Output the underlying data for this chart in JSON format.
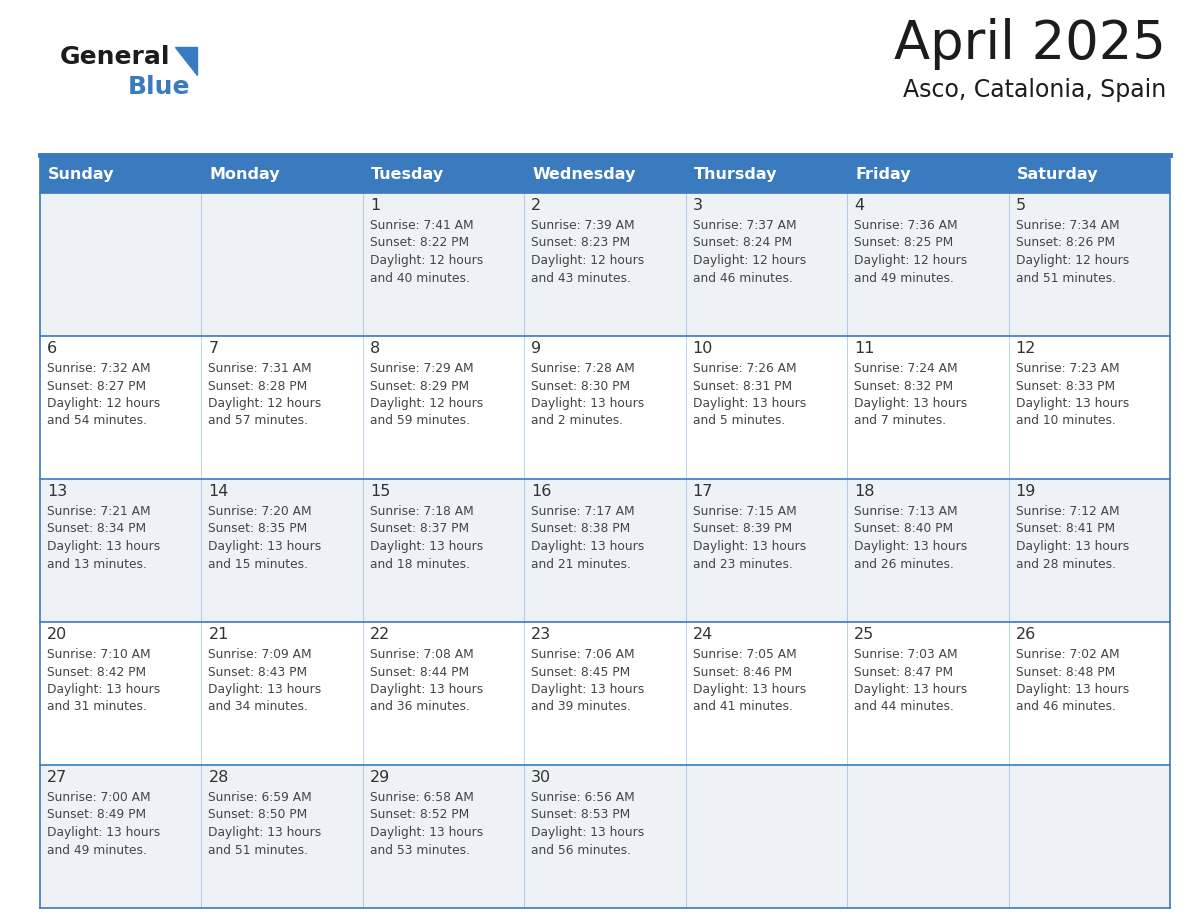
{
  "title": "April 2025",
  "subtitle": "Asco, Catalonia, Spain",
  "header_color": "#3a7abf",
  "header_text_color": "#ffffff",
  "cell_bg_color1": "#eef2f7",
  "cell_bg_color2": "#ffffff",
  "day_number_color": "#333333",
  "text_color": "#444444",
  "line_color": "#3a7abf",
  "days_of_week": [
    "Sunday",
    "Monday",
    "Tuesday",
    "Wednesday",
    "Thursday",
    "Friday",
    "Saturday"
  ],
  "weeks": [
    [
      {
        "day": "",
        "sunrise": "",
        "sunset": "",
        "daylight": ""
      },
      {
        "day": "",
        "sunrise": "",
        "sunset": "",
        "daylight": ""
      },
      {
        "day": "1",
        "sunrise": "Sunrise: 7:41 AM",
        "sunset": "Sunset: 8:22 PM",
        "daylight": "Daylight: 12 hours\nand 40 minutes."
      },
      {
        "day": "2",
        "sunrise": "Sunrise: 7:39 AM",
        "sunset": "Sunset: 8:23 PM",
        "daylight": "Daylight: 12 hours\nand 43 minutes."
      },
      {
        "day": "3",
        "sunrise": "Sunrise: 7:37 AM",
        "sunset": "Sunset: 8:24 PM",
        "daylight": "Daylight: 12 hours\nand 46 minutes."
      },
      {
        "day": "4",
        "sunrise": "Sunrise: 7:36 AM",
        "sunset": "Sunset: 8:25 PM",
        "daylight": "Daylight: 12 hours\nand 49 minutes."
      },
      {
        "day": "5",
        "sunrise": "Sunrise: 7:34 AM",
        "sunset": "Sunset: 8:26 PM",
        "daylight": "Daylight: 12 hours\nand 51 minutes."
      }
    ],
    [
      {
        "day": "6",
        "sunrise": "Sunrise: 7:32 AM",
        "sunset": "Sunset: 8:27 PM",
        "daylight": "Daylight: 12 hours\nand 54 minutes."
      },
      {
        "day": "7",
        "sunrise": "Sunrise: 7:31 AM",
        "sunset": "Sunset: 8:28 PM",
        "daylight": "Daylight: 12 hours\nand 57 minutes."
      },
      {
        "day": "8",
        "sunrise": "Sunrise: 7:29 AM",
        "sunset": "Sunset: 8:29 PM",
        "daylight": "Daylight: 12 hours\nand 59 minutes."
      },
      {
        "day": "9",
        "sunrise": "Sunrise: 7:28 AM",
        "sunset": "Sunset: 8:30 PM",
        "daylight": "Daylight: 13 hours\nand 2 minutes."
      },
      {
        "day": "10",
        "sunrise": "Sunrise: 7:26 AM",
        "sunset": "Sunset: 8:31 PM",
        "daylight": "Daylight: 13 hours\nand 5 minutes."
      },
      {
        "day": "11",
        "sunrise": "Sunrise: 7:24 AM",
        "sunset": "Sunset: 8:32 PM",
        "daylight": "Daylight: 13 hours\nand 7 minutes."
      },
      {
        "day": "12",
        "sunrise": "Sunrise: 7:23 AM",
        "sunset": "Sunset: 8:33 PM",
        "daylight": "Daylight: 13 hours\nand 10 minutes."
      }
    ],
    [
      {
        "day": "13",
        "sunrise": "Sunrise: 7:21 AM",
        "sunset": "Sunset: 8:34 PM",
        "daylight": "Daylight: 13 hours\nand 13 minutes."
      },
      {
        "day": "14",
        "sunrise": "Sunrise: 7:20 AM",
        "sunset": "Sunset: 8:35 PM",
        "daylight": "Daylight: 13 hours\nand 15 minutes."
      },
      {
        "day": "15",
        "sunrise": "Sunrise: 7:18 AM",
        "sunset": "Sunset: 8:37 PM",
        "daylight": "Daylight: 13 hours\nand 18 minutes."
      },
      {
        "day": "16",
        "sunrise": "Sunrise: 7:17 AM",
        "sunset": "Sunset: 8:38 PM",
        "daylight": "Daylight: 13 hours\nand 21 minutes."
      },
      {
        "day": "17",
        "sunrise": "Sunrise: 7:15 AM",
        "sunset": "Sunset: 8:39 PM",
        "daylight": "Daylight: 13 hours\nand 23 minutes."
      },
      {
        "day": "18",
        "sunrise": "Sunrise: 7:13 AM",
        "sunset": "Sunset: 8:40 PM",
        "daylight": "Daylight: 13 hours\nand 26 minutes."
      },
      {
        "day": "19",
        "sunrise": "Sunrise: 7:12 AM",
        "sunset": "Sunset: 8:41 PM",
        "daylight": "Daylight: 13 hours\nand 28 minutes."
      }
    ],
    [
      {
        "day": "20",
        "sunrise": "Sunrise: 7:10 AM",
        "sunset": "Sunset: 8:42 PM",
        "daylight": "Daylight: 13 hours\nand 31 minutes."
      },
      {
        "day": "21",
        "sunrise": "Sunrise: 7:09 AM",
        "sunset": "Sunset: 8:43 PM",
        "daylight": "Daylight: 13 hours\nand 34 minutes."
      },
      {
        "day": "22",
        "sunrise": "Sunrise: 7:08 AM",
        "sunset": "Sunset: 8:44 PM",
        "daylight": "Daylight: 13 hours\nand 36 minutes."
      },
      {
        "day": "23",
        "sunrise": "Sunrise: 7:06 AM",
        "sunset": "Sunset: 8:45 PM",
        "daylight": "Daylight: 13 hours\nand 39 minutes."
      },
      {
        "day": "24",
        "sunrise": "Sunrise: 7:05 AM",
        "sunset": "Sunset: 8:46 PM",
        "daylight": "Daylight: 13 hours\nand 41 minutes."
      },
      {
        "day": "25",
        "sunrise": "Sunrise: 7:03 AM",
        "sunset": "Sunset: 8:47 PM",
        "daylight": "Daylight: 13 hours\nand 44 minutes."
      },
      {
        "day": "26",
        "sunrise": "Sunrise: 7:02 AM",
        "sunset": "Sunset: 8:48 PM",
        "daylight": "Daylight: 13 hours\nand 46 minutes."
      }
    ],
    [
      {
        "day": "27",
        "sunrise": "Sunrise: 7:00 AM",
        "sunset": "Sunset: 8:49 PM",
        "daylight": "Daylight: 13 hours\nand 49 minutes."
      },
      {
        "day": "28",
        "sunrise": "Sunrise: 6:59 AM",
        "sunset": "Sunset: 8:50 PM",
        "daylight": "Daylight: 13 hours\nand 51 minutes."
      },
      {
        "day": "29",
        "sunrise": "Sunrise: 6:58 AM",
        "sunset": "Sunset: 8:52 PM",
        "daylight": "Daylight: 13 hours\nand 53 minutes."
      },
      {
        "day": "30",
        "sunrise": "Sunrise: 6:56 AM",
        "sunset": "Sunset: 8:53 PM",
        "daylight": "Daylight: 13 hours\nand 56 minutes."
      },
      {
        "day": "",
        "sunrise": "",
        "sunset": "",
        "daylight": ""
      },
      {
        "day": "",
        "sunrise": "",
        "sunset": "",
        "daylight": ""
      },
      {
        "day": "",
        "sunrise": "",
        "sunset": "",
        "daylight": ""
      }
    ]
  ]
}
